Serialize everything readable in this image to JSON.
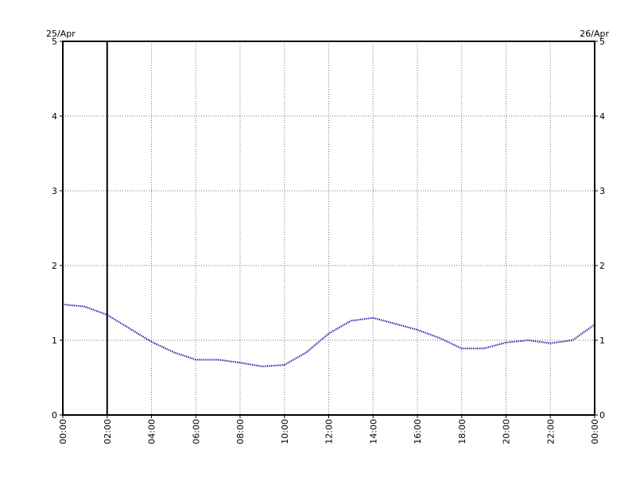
{
  "chart_data": {
    "type": "line",
    "x": [
      0,
      1,
      2,
      3,
      4,
      5,
      6,
      7,
      8,
      9,
      10,
      11,
      12,
      13,
      14,
      15,
      16,
      17,
      18,
      19,
      20,
      21,
      22,
      23,
      24
    ],
    "series": [
      {
        "color": "#0000a0",
        "values": [
          1.48,
          1.45,
          1.34,
          1.16,
          0.98,
          0.84,
          0.74,
          0.74,
          0.7,
          0.65,
          0.67,
          0.84,
          1.09,
          1.26,
          1.3,
          1.22,
          1.14,
          1.03,
          0.89,
          0.89,
          0.97,
          1.0,
          0.96,
          1.0,
          1.21
        ]
      }
    ],
    "xlim": [
      0,
      24
    ],
    "xticks": [
      {
        "value": 0,
        "label": "00:00"
      },
      {
        "value": 2,
        "label": "02:00"
      },
      {
        "value": 4,
        "label": "04:00"
      },
      {
        "value": 6,
        "label": "06:00"
      },
      {
        "value": 8,
        "label": "08:00"
      },
      {
        "value": 10,
        "label": "10:00"
      },
      {
        "value": 12,
        "label": "12:00"
      },
      {
        "value": 14,
        "label": "14:00"
      },
      {
        "value": 16,
        "label": "16:00"
      },
      {
        "value": 18,
        "label": "18:00"
      },
      {
        "value": 20,
        "label": "20:00"
      },
      {
        "value": 22,
        "label": "22:00"
      },
      {
        "value": 24,
        "label": "00:00"
      }
    ],
    "ylim": [
      0,
      5
    ],
    "yticks": [
      0,
      1,
      2,
      3,
      4,
      5
    ],
    "y2lim": [
      0,
      5
    ],
    "y2ticks": [
      0,
      1,
      2,
      3,
      4,
      5
    ],
    "grid": true,
    "marker_x": 2,
    "date_labels": [
      "25/Apr",
      "26/Apr"
    ]
  }
}
